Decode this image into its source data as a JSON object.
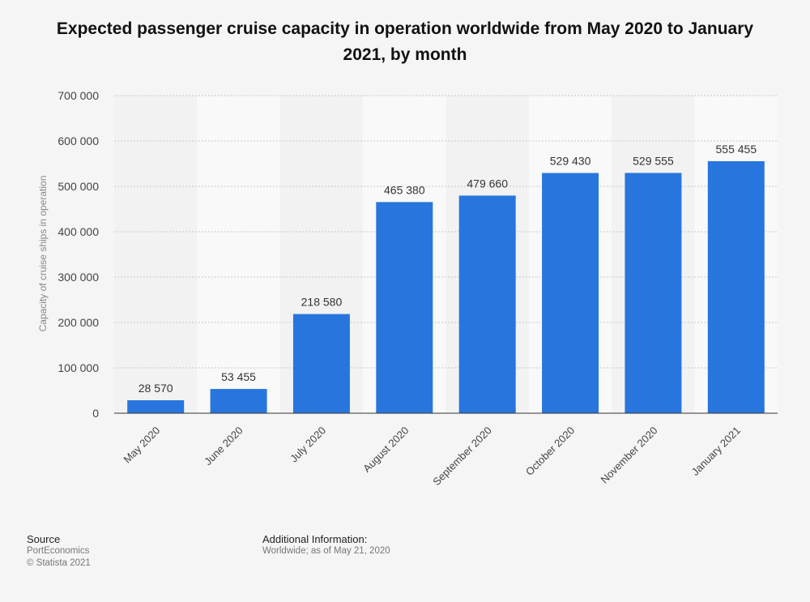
{
  "chart_data": {
    "type": "bar",
    "title": "Expected passenger cruise capacity in operation worldwide from May 2020 to January 2021, by month",
    "xlabel": "",
    "ylabel": "Capacity of cruise ships in operation",
    "categories": [
      "May 2020",
      "June 2020",
      "July 2020",
      "August 2020",
      "September 2020",
      "October 2020",
      "November 2020",
      "January 2021"
    ],
    "values": [
      28570,
      53455,
      218580,
      465380,
      479660,
      529430,
      529555,
      555455
    ],
    "value_labels": [
      "28 570",
      "53 455",
      "218 580",
      "465 380",
      "479 660",
      "529 430",
      "529 555",
      "555 455"
    ],
    "ylim": [
      0,
      700000
    ],
    "yticks": [
      0,
      100000,
      200000,
      300000,
      400000,
      500000,
      600000,
      700000
    ],
    "ytick_labels": [
      "0",
      "100 000",
      "200 000",
      "300 000",
      "400 000",
      "500 000",
      "600 000",
      "700 000"
    ],
    "grid": true,
    "legend": "none",
    "bar_color": "#2876dd"
  },
  "footer": {
    "source_heading": "Source",
    "source_name": "PortEconomics",
    "copyright": "© Statista 2021",
    "info_heading": "Additional Information:",
    "info_text": "Worldwide; as of May 21, 2020"
  }
}
